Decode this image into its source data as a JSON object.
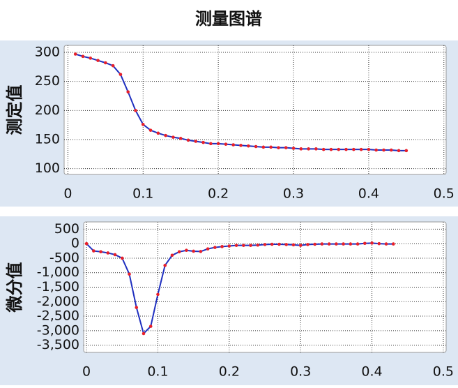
{
  "title": "测量图谱",
  "chart_data": [
    {
      "type": "line",
      "y_label": "测定值",
      "x": [
        0.01,
        0.02,
        0.03,
        0.04,
        0.05,
        0.06,
        0.07,
        0.08,
        0.09,
        0.1,
        0.11,
        0.12,
        0.13,
        0.14,
        0.15,
        0.16,
        0.17,
        0.18,
        0.19,
        0.2,
        0.21,
        0.22,
        0.23,
        0.24,
        0.25,
        0.26,
        0.27,
        0.28,
        0.29,
        0.3,
        0.31,
        0.32,
        0.33,
        0.34,
        0.35,
        0.36,
        0.37,
        0.38,
        0.39,
        0.4,
        0.41,
        0.42,
        0.43,
        0.44,
        0.45
      ],
      "series": [
        {
          "color": "#1f2fbf",
          "marker_color": "#e8202a",
          "values": [
            297,
            293,
            290,
            286,
            282,
            277,
            262,
            232,
            200,
            176,
            166,
            161,
            157,
            154,
            152,
            149,
            147,
            145,
            143,
            143,
            142,
            141,
            140,
            139,
            138,
            137,
            137,
            136,
            136,
            135,
            134,
            134,
            134,
            133,
            133,
            133,
            133,
            133,
            133,
            133,
            132,
            132,
            132,
            131,
            131
          ]
        }
      ],
      "xlim": [
        -0.005,
        0.503
      ],
      "ylim": [
        90,
        312
      ],
      "xticks": [
        0,
        0.1,
        0.2,
        0.3,
        0.4,
        0.5
      ],
      "yticks": [
        100,
        150,
        200,
        250,
        300
      ],
      "grid": true
    },
    {
      "type": "line",
      "y_label": "微分值",
      "x": [
        0,
        0.01,
        0.02,
        0.03,
        0.04,
        0.05,
        0.06,
        0.07,
        0.08,
        0.09,
        0.1,
        0.11,
        0.12,
        0.13,
        0.14,
        0.15,
        0.16,
        0.17,
        0.18,
        0.19,
        0.2,
        0.21,
        0.22,
        0.23,
        0.24,
        0.25,
        0.26,
        0.27,
        0.28,
        0.29,
        0.3,
        0.31,
        0.32,
        0.33,
        0.34,
        0.35,
        0.36,
        0.37,
        0.38,
        0.39,
        0.4,
        0.41,
        0.42,
        0.43
      ],
      "series": [
        {
          "color": "#1f2fbf",
          "marker_color": "#e8202a",
          "values": [
            0,
            -250,
            -280,
            -320,
            -380,
            -500,
            -1050,
            -2200,
            -3100,
            -2850,
            -1750,
            -750,
            -400,
            -280,
            -230,
            -260,
            -270,
            -180,
            -130,
            -100,
            -80,
            -60,
            -60,
            -60,
            -50,
            -30,
            -20,
            -20,
            -30,
            -40,
            -60,
            -30,
            -20,
            -10,
            -10,
            -10,
            -10,
            -10,
            -10,
            10,
            20,
            0,
            -10,
            -10
          ]
        }
      ],
      "xlim": [
        -0.004,
        0.504
      ],
      "ylim": [
        -3750,
        750
      ],
      "xticks": [
        0,
        0.1,
        0.2,
        0.3,
        0.4,
        0.5
      ],
      "yticks": [
        500,
        0,
        -500,
        {
          "value": -1000,
          "label": "-1,000"
        },
        {
          "value": -1500,
          "label": "-1,500"
        },
        {
          "value": -2000,
          "label": "-2,000"
        },
        {
          "value": -2500,
          "label": "-2,500"
        },
        {
          "value": -3000,
          "label": "-3,000"
        },
        {
          "value": -3500,
          "label": "-3,500"
        }
      ],
      "grid": true
    }
  ]
}
